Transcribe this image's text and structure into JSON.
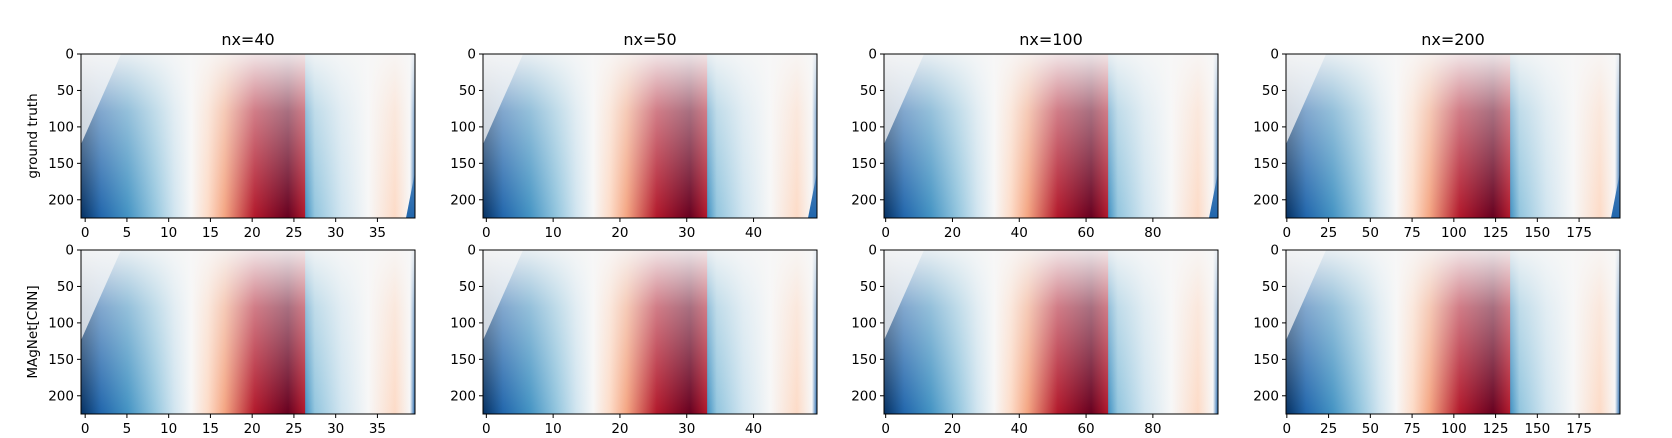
{
  "figure": {
    "row_labels": [
      "ground truth",
      "MAgNet[CNN]"
    ],
    "colormap": [
      "#053061",
      "#2166ac",
      "#4393c3",
      "#92c5de",
      "#d1e5f0",
      "#f7f7f7",
      "#fddbc7",
      "#f4a582",
      "#d6604d",
      "#b2182b",
      "#67001f"
    ]
  },
  "chart_data": [
    {
      "type": "heatmap",
      "title": "nx=40",
      "x_ticks": [
        0,
        5,
        10,
        15,
        20,
        25,
        30,
        35
      ],
      "x_range": [
        0,
        40
      ],
      "y_ticks": [
        0,
        50,
        100,
        150,
        200
      ],
      "y_range": [
        0,
        225
      ],
      "y_inverted": true,
      "rows": [
        "ground truth",
        "MAgNet[CNN]"
      ],
      "xlabel": "",
      "ylabel": ""
    },
    {
      "type": "heatmap",
      "title": "nx=50",
      "x_ticks": [
        0,
        10,
        20,
        30,
        40
      ],
      "x_range": [
        0,
        50
      ],
      "y_ticks": [
        0,
        50,
        100,
        150,
        200
      ],
      "y_range": [
        0,
        225
      ],
      "y_inverted": true,
      "rows": [
        "ground truth",
        "MAgNet[CNN]"
      ],
      "xlabel": "",
      "ylabel": ""
    },
    {
      "type": "heatmap",
      "title": "nx=100",
      "x_ticks": [
        0,
        20,
        40,
        60,
        80
      ],
      "x_range": [
        0,
        100
      ],
      "y_ticks": [
        0,
        50,
        100,
        150,
        200
      ],
      "y_range": [
        0,
        225
      ],
      "y_inverted": true,
      "rows": [
        "ground truth",
        "MAgNet[CNN]"
      ],
      "xlabel": "",
      "ylabel": ""
    },
    {
      "type": "heatmap",
      "title": "nx=200",
      "x_ticks": [
        0,
        25,
        50,
        75,
        100,
        125,
        150,
        175
      ],
      "x_range": [
        0,
        200
      ],
      "y_ticks": [
        0,
        50,
        100,
        150,
        200
      ],
      "y_range": [
        0,
        225
      ],
      "y_inverted": true,
      "rows": [
        "ground truth",
        "MAgNet[CNN]"
      ],
      "xlabel": "",
      "ylabel": ""
    }
  ]
}
